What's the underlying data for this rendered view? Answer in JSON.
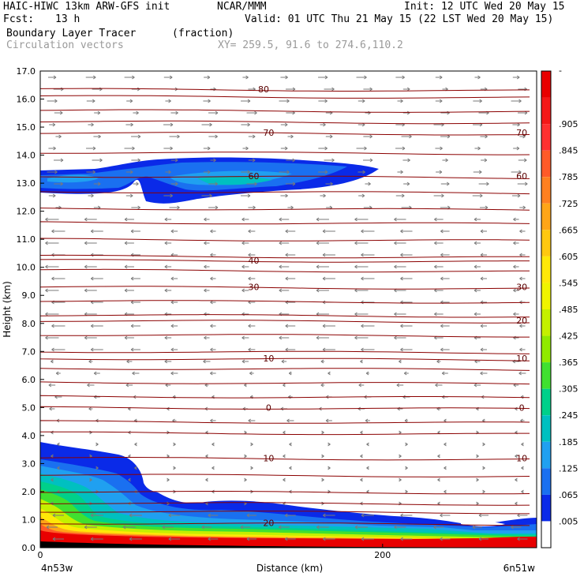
{
  "header": {
    "model": "HAIC-HIWC 13km ARW-GFS init",
    "org": "NCAR/MMM",
    "init": "Init: 12 UTC Wed 20 May 15",
    "fcst_label": "Fcst:",
    "fcst_value": "13 h",
    "valid": "Valid: 01 UTC Thu 21 May 15 (22 LST Wed 20 May 15)",
    "field": "Boundary Layer Tracer",
    "units": "(fraction)",
    "vectors": "Circulation vectors",
    "xy": "XY= 259.5, 91.6 to 274.6,110.2"
  },
  "chart_data": {
    "type": "heatmap",
    "xlabel": "Distance (km)",
    "ylabel": "Height (km)",
    "xlim": [
      0,
      290
    ],
    "ylim": [
      0,
      17
    ],
    "x_ticks": [
      {
        "value": 0,
        "label": "0"
      },
      {
        "value": 200,
        "label": "200"
      }
    ],
    "x_end_labels": {
      "left": "4n53w",
      "right": "6n51w"
    },
    "y_ticks": [
      {
        "value": 0,
        "label": "0.0"
      },
      {
        "value": 1,
        "label": "1.0"
      },
      {
        "value": 2,
        "label": "2.0"
      },
      {
        "value": 3,
        "label": "3.0"
      },
      {
        "value": 4,
        "label": "4.0"
      },
      {
        "value": 5,
        "label": "5.0"
      },
      {
        "value": 6,
        "label": "6.0"
      },
      {
        "value": 7,
        "label": "7.0"
      },
      {
        "value": 8,
        "label": "8.0"
      },
      {
        "value": 9,
        "label": "9.0"
      },
      {
        "value": 10,
        "label": "10.0"
      },
      {
        "value": 11,
        "label": "11.0"
      },
      {
        "value": 12,
        "label": "12.0"
      },
      {
        "value": 13,
        "label": "13.0"
      },
      {
        "value": 14,
        "label": "14.0"
      },
      {
        "value": 15,
        "label": "15.0"
      },
      {
        "value": 16,
        "label": "16.0"
      },
      {
        "value": 17,
        "label": "17.0"
      }
    ],
    "colorbar": {
      "labels": [
        "-",
        ".905",
        ".845",
        ".785",
        ".725",
        ".665",
        ".605",
        ".545",
        ".485",
        ".425",
        ".365",
        ".305",
        ".245",
        ".185",
        ".125",
        ".065",
        ".005"
      ],
      "colors": [
        "#e80000",
        "#f41818",
        "#ff3030",
        "#ff5a28",
        "#ff8020",
        "#ffa518",
        "#ffc810",
        "#ffe808",
        "#f0f400",
        "#c4f000",
        "#90ea00",
        "#40e030",
        "#00d08a",
        "#00c0c0",
        "#20a0f0",
        "#1a70f0",
        "#0a2ae8",
        "#ffffff"
      ]
    },
    "isotherms": [
      {
        "label": "80",
        "height": 16.35,
        "positions": [
          0.45
        ]
      },
      {
        "label": "70",
        "height": 14.8,
        "positions": [
          0.46,
          0.97
        ]
      },
      {
        "label": "60",
        "height": 13.25,
        "positions": [
          0.43,
          0.97
        ]
      },
      {
        "label": "40",
        "height": 10.25,
        "positions": [
          0.43
        ]
      },
      {
        "label": "30",
        "height": 9.3,
        "positions": [
          0.43,
          0.97
        ]
      },
      {
        "label": "20",
        "height": 8.1,
        "positions": [
          0.97
        ]
      },
      {
        "label": "10",
        "height": 6.75,
        "positions": [
          0.46,
          0.97
        ]
      },
      {
        "label": "0",
        "height": 5.0,
        "positions": [
          0.46,
          0.97
        ]
      },
      {
        "label": "10",
        "height": 3.2,
        "positions": [
          0.46,
          0.97
        ]
      },
      {
        "label": "20",
        "height": 0.88,
        "positions": [
          0.46
        ]
      }
    ],
    "plain_isolines": [
      16.1,
      15.6,
      15.2,
      14.1,
      12.7,
      12.1,
      11.6,
      11.0,
      10.4,
      9.9,
      8.8,
      8.3,
      7.6,
      7.0,
      6.4,
      5.9,
      5.4,
      4.5,
      4.1,
      2.6,
      2.0,
      1.6,
      1.3
    ],
    "tracer_regions": [
      {
        "name": "upper-layer",
        "colors": [
          "#0a2ae8",
          "#1a70f0",
          "#20a0f0",
          "#00c0c0"
        ]
      },
      {
        "name": "boundary-layer",
        "colors": [
          "#0a2ae8",
          "#1a70f0",
          "#20a0f0",
          "#00c0c0",
          "#00d08a",
          "#40e030",
          "#c4f000",
          "#ffe808",
          "#ffa518",
          "#ff5a28",
          "#e80000"
        ]
      }
    ],
    "vector_color": "#7a7a7a",
    "isoline_color": "#8b0000",
    "label_color": "#5a0000"
  }
}
